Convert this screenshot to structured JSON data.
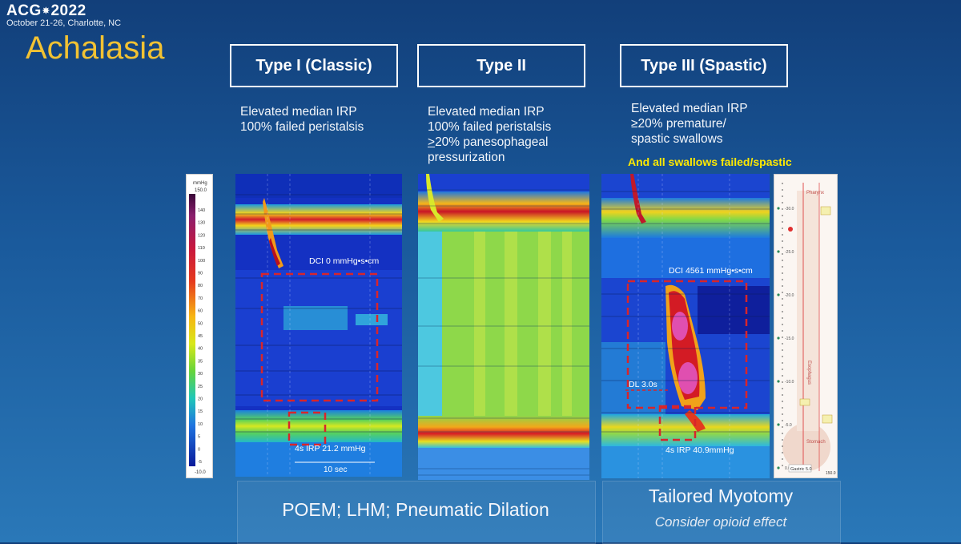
{
  "header": {
    "logo_left": "ACG",
    "logo_star": "✵",
    "logo_right": "2022",
    "dates": "October 21-26, Charlotte, NC",
    "title": "Achalasia"
  },
  "types": [
    {
      "label": "Type I (Classic)",
      "desc": [
        "Elevated median IRP",
        "100% failed peristalsis"
      ]
    },
    {
      "label": "Type II",
      "desc_prefix": [
        "Elevated median IRP",
        "100% failed peristalsis"
      ],
      "desc_underline": ">",
      "desc_rest": "20% panesophageal",
      "desc_last": "pressurization"
    },
    {
      "label": "Type III (Spastic)",
      "desc": [
        "Elevated median IRP",
        "≥20% premature/",
        "spastic swallows"
      ],
      "highlight": "And all swallows failed/spastic"
    }
  ],
  "plots": {
    "p1": {
      "dci": "DCI 0 mmHg•s•cm",
      "irp": "4s IRP 21.2 mmHg",
      "scale_bar": "10 sec"
    },
    "p3": {
      "dci": "DCI 4561 mmHg•s•cm",
      "dl": "DL 3.0s",
      "irp": "4s IRP 40.9mmHg"
    }
  },
  "colorbar": {
    "unit": "mmHg",
    "top": "150.0",
    "bottom": "-10.0",
    "ticks": [
      "140",
      "130",
      "120",
      "110",
      "100",
      "90",
      "80",
      "70",
      "60",
      "50",
      "45",
      "40",
      "35",
      "30",
      "25",
      "20",
      "15",
      "10",
      "5",
      "0",
      "-5"
    ]
  },
  "sidebar": {
    "pharynx": "Pharynx",
    "esophagus": "Esophagus",
    "stomach": "Stomach",
    "gastric": "Gastric 5.0",
    "ticks": [
      "-30.0",
      "-25.0",
      "-20.0",
      "-15.0",
      "-10.0",
      "-5.0",
      "0.0"
    ],
    "bottom_val": "150.0"
  },
  "treatments": {
    "left": "POEM; LHM; Pneumatic Dilation",
    "right": "Tailored Myotomy",
    "right_note": "Consider opioid effect"
  },
  "colors": {
    "title": "#f2c233",
    "highlight": "#ffe900",
    "dash": "#d8252b"
  }
}
